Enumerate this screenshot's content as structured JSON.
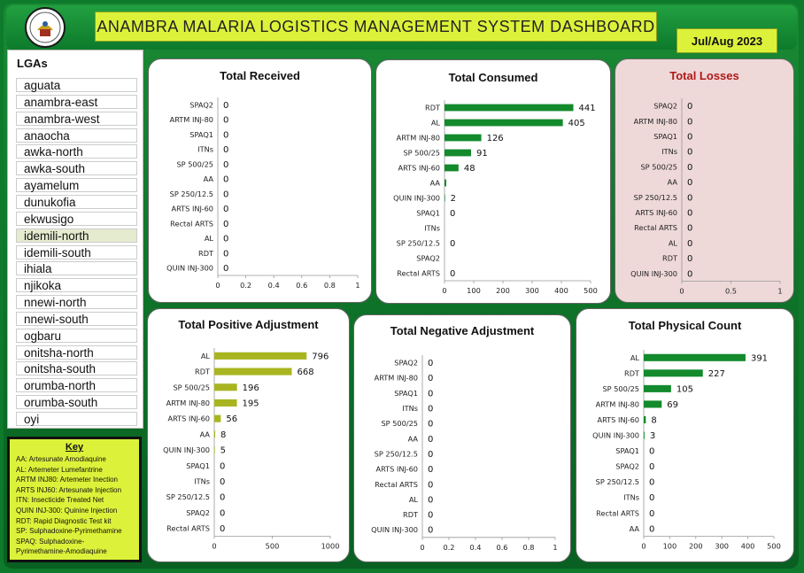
{
  "header": {
    "title": "ANAMBRA MALARIA LOGISTICS MANAGEMENT SYSTEM DASHBOARD",
    "period": "Jul/Aug 2023"
  },
  "lga": {
    "title": "LGAs",
    "items": [
      "aguata",
      "anambra-east",
      "anambra-west",
      "anaocha",
      "awka-north",
      "awka-south",
      "ayamelum",
      "dunukofia",
      "ekwusigo",
      "idemili-north",
      "idemili-south",
      "ihiala",
      "njikoka",
      "nnewi-north",
      "nnewi-south",
      "ogbaru",
      "onitsha-north",
      "onitsha-south",
      "orumba-north",
      "orumba-south",
      "oyi"
    ],
    "selected": "idemili-north"
  },
  "key": {
    "title": "Key",
    "lines": [
      "AA: Artesunate Amodiaquine",
      "AL: Artemeter Lumefantrine",
      "ARTM INJ80: Artemeter Inection",
      "ARTS INJ60: Artesunate Injection",
      "ITN: Insecticide Treated Net",
      "QUIN INJ-300: Quinine Injection",
      "RDT: Rapid Diagnostic Test kit",
      "SP: Sulphadoxine-Pyrimethamine",
      "SPAQ: Sulphadoxine-",
      "Pyrimethamine-Amodiaquine"
    ]
  },
  "colors": {
    "dark_green": "#138a2c",
    "olive": "#a9b520",
    "title_red": "#b01818"
  },
  "chart_data": [
    {
      "type": "bar",
      "title": "Total Received",
      "categories": [
        "SPAQ2",
        "ARTM INJ-80",
        "SPAQ1",
        "ITNs",
        "SP 500/25",
        "AA",
        "SP 250/12.5",
        "ARTS INJ-60",
        "Rectal ARTS",
        "AL",
        "RDT",
        "QUIN INJ-300"
      ],
      "values": [
        0,
        0,
        0,
        0,
        0,
        0,
        0,
        0,
        0,
        0,
        0,
        0
      ],
      "labels": [
        "0",
        "0",
        "0",
        "0",
        "0",
        "0",
        "0",
        "0",
        "0",
        "0",
        "0",
        "0"
      ],
      "xlim": [
        0,
        1
      ],
      "xticks": [
        "0",
        "0.2",
        "0.4",
        "0.6",
        "0.8",
        "1"
      ],
      "color": "#138a2c"
    },
    {
      "type": "bar",
      "title": "Total Consumed",
      "categories": [
        "RDT",
        "AL",
        "ARTM INJ-80",
        "SP 500/25",
        "ARTS INJ-60",
        "AA",
        "QUIN INJ-300",
        "SPAQ1",
        "ITNs",
        "SP 250/12.5",
        "SPAQ2",
        "Rectal ARTS"
      ],
      "values": [
        441,
        405,
        126,
        91,
        48,
        6,
        2,
        0,
        0,
        0,
        0,
        0
      ],
      "labels": [
        "441",
        "405",
        "126",
        "91",
        "48",
        "",
        "2",
        "0",
        "",
        "0",
        "",
        "0"
      ],
      "xlim": [
        0,
        500
      ],
      "xticks": [
        "0",
        "100",
        "200",
        "300",
        "400",
        "500"
      ],
      "color": "#138a2c"
    },
    {
      "type": "bar",
      "title": "Total Losses",
      "categories": [
        "SPAQ2",
        "ARTM INJ-80",
        "SPAQ1",
        "ITNs",
        "SP 500/25",
        "AA",
        "SP 250/12.5",
        "ARTS INJ-60",
        "Rectal ARTS",
        "AL",
        "RDT",
        "QUIN INJ-300"
      ],
      "values": [
        0,
        0,
        0,
        0,
        0,
        0,
        0,
        0,
        0,
        0,
        0,
        0
      ],
      "labels": [
        "0",
        "0",
        "0",
        "0",
        "0",
        "0",
        "0",
        "0",
        "0",
        "0",
        "0",
        "0"
      ],
      "xlim": [
        0,
        1
      ],
      "xticks": [
        "0",
        "0.5",
        "1"
      ],
      "color": "#138a2c"
    },
    {
      "type": "bar",
      "title": "Total Positive Adjustment",
      "categories": [
        "AL",
        "RDT",
        "SP 500/25",
        "ARTM INJ-80",
        "ARTS INJ-60",
        "AA",
        "QUIN INJ-300",
        "SPAQ1",
        "ITNs",
        "SP 250/12.5",
        "SPAQ2",
        "Rectal ARTS"
      ],
      "values": [
        796,
        668,
        196,
        195,
        56,
        8,
        5,
        0,
        0,
        0,
        0,
        0
      ],
      "labels": [
        "796",
        "668",
        "196",
        "195",
        "56",
        "8",
        "5",
        "0",
        "0",
        "0",
        "0",
        "0"
      ],
      "xlim": [
        0,
        1000
      ],
      "xticks": [
        "0",
        "500",
        "1000"
      ],
      "color": "#a9b520"
    },
    {
      "type": "bar",
      "title": "Total Negative Adjustment",
      "categories": [
        "SPAQ2",
        "ARTM INJ-80",
        "SPAQ1",
        "ITNs",
        "SP 500/25",
        "AA",
        "SP 250/12.5",
        "ARTS INJ-60",
        "Rectal ARTS",
        "AL",
        "RDT",
        "QUIN INJ-300"
      ],
      "values": [
        0,
        0,
        0,
        0,
        0,
        0,
        0,
        0,
        0,
        0,
        0,
        0
      ],
      "labels": [
        "0",
        "0",
        "0",
        "0",
        "0",
        "0",
        "0",
        "0",
        "0",
        "0",
        "0",
        "0"
      ],
      "xlim": [
        0,
        1
      ],
      "xticks": [
        "0",
        "0.2",
        "0.4",
        "0.6",
        "0.8",
        "1"
      ],
      "color": "#138a2c"
    },
    {
      "type": "bar",
      "title": "Total Physical Count",
      "categories": [
        "AL",
        "RDT",
        "SP 500/25",
        "ARTM INJ-80",
        "ARTS INJ-60",
        "QUIN INJ-300",
        "SPAQ1",
        "SPAQ2",
        "SP 250/12.5",
        "ITNs",
        "Rectal ARTS",
        "AA"
      ],
      "values": [
        391,
        227,
        105,
        69,
        8,
        3,
        0,
        0,
        0,
        0,
        0,
        0
      ],
      "labels": [
        "391",
        "227",
        "105",
        "69",
        "8",
        "3",
        "0",
        "0",
        "0",
        "0",
        "0",
        "0"
      ],
      "xlim": [
        0,
        500
      ],
      "xticks": [
        "0",
        "100",
        "200",
        "300",
        "400",
        "500"
      ],
      "color": "#138a2c"
    }
  ]
}
